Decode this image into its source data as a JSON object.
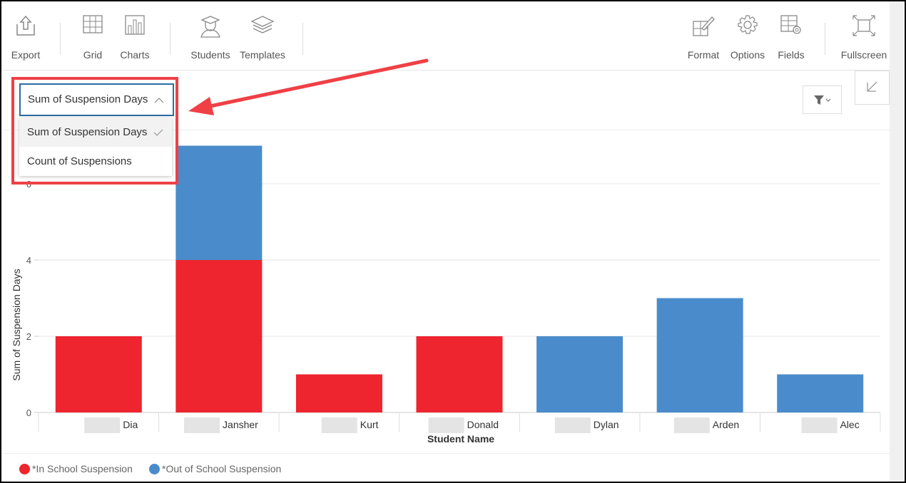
{
  "toolbar": {
    "export_label": "Export",
    "grid_label": "Grid",
    "charts_label": "Charts",
    "students_label": "Students",
    "templates_label": "Templates",
    "format_label": "Format",
    "options_label": "Options",
    "fields_label": "Fields",
    "fullscreen_label": "Fullscreen"
  },
  "measure_dropdown": {
    "selected": "Sum of Suspension Days",
    "options": [
      "Sum of Suspension Days",
      "Count of Suspensions"
    ]
  },
  "colors": {
    "in_school": "#ee242e",
    "out_of_school": "#4a8ccb",
    "highlight": "#ef4046"
  },
  "chart_data": {
    "type": "bar",
    "stacked": true,
    "categories": [
      "Dia",
      "Jansher",
      "Kurt",
      "Donald",
      "Dylan",
      "Arden",
      "Alec"
    ],
    "series": [
      {
        "name": "*In School Suspension",
        "color": "#ee242e",
        "values": [
          2,
          4,
          1,
          2,
          0,
          0,
          0
        ]
      },
      {
        "name": "*Out of School Suspension",
        "color": "#4a8ccb",
        "values": [
          0,
          3,
          0,
          0,
          2,
          3,
          1
        ]
      }
    ],
    "xlabel": "Student Name",
    "ylabel": "Sum of Suspension Days",
    "yticks": [
      0,
      2,
      4,
      6
    ],
    "ylim": [
      0,
      7.4
    ],
    "grid": true,
    "legend": "bottom-left"
  }
}
